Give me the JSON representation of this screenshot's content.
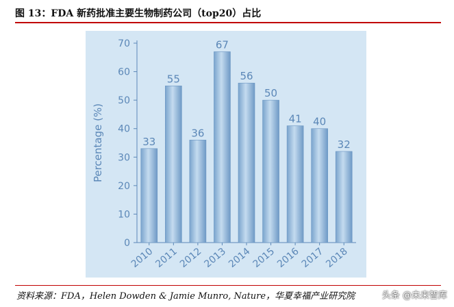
{
  "figure": {
    "title": "图 13：FDA 新药批准主要生物制药公司（top20）占比",
    "source": "资料来源：FDA，Helen Dowden & Jamie Munro, Nature，华夏幸福产业研究院",
    "watermark": "头条 @未来智库"
  },
  "colors": {
    "title_rule": "#c00000",
    "panel_bg": "#d4e6f4",
    "bar_fill": "#8eb6db",
    "axis_text": "#5b87b7"
  },
  "chart_data": {
    "type": "bar",
    "title": "",
    "xlabel": "",
    "ylabel": "Percentage (%)",
    "categories": [
      "2010",
      "2011",
      "2012",
      "2013",
      "2014",
      "2015",
      "2016",
      "2017",
      "2018"
    ],
    "values": [
      33,
      55,
      36,
      67,
      56,
      50,
      41,
      40,
      32
    ],
    "data_labels": [
      "33",
      "55",
      "36",
      "67",
      "56",
      "50",
      "41",
      "40",
      "32"
    ],
    "ylim": [
      0,
      70
    ],
    "yticks": [
      0,
      10,
      20,
      30,
      40,
      50,
      60,
      70
    ],
    "ytick_labels": [
      "0",
      "10",
      "20",
      "30",
      "40",
      "50",
      "60",
      "70"
    ],
    "grid": false,
    "legend": "none"
  }
}
